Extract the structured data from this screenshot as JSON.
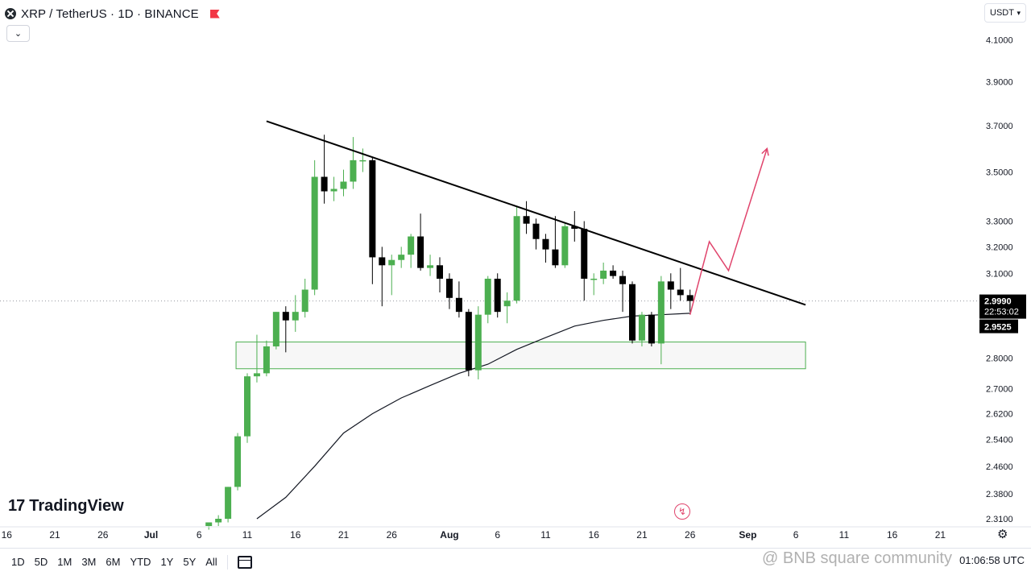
{
  "header": {
    "title": "XRP / TetherUS · 1D · BINANCE",
    "currency": "USDT"
  },
  "brand": "TradingView",
  "ranges": [
    "1D",
    "5D",
    "1M",
    "3M",
    "6M",
    "YTD",
    "1Y",
    "5Y",
    "All"
  ],
  "clock": "01:06:58 UTC",
  "watermark": "@ BNB square community",
  "icons": {
    "symbol": "xrp-logo-icon",
    "flag": "flag-icon",
    "collapse": "chevron-down-icon",
    "calendar": "calendar-icon",
    "alert": "lightning-icon",
    "settings": "gear-icon"
  },
  "colors": {
    "up": "#4caf50",
    "down": "#000000",
    "trendline": "#000000",
    "ma": "#131722",
    "projection": "#e0446c",
    "zone_border": "#4caf50",
    "price_label_bg": "#000000"
  },
  "chart_data": {
    "type": "candlestick",
    "symbol": "XRP / TetherUS",
    "interval": "1D",
    "exchange": "BINANCE",
    "x_ticks": [
      "16",
      "21",
      "26",
      "Jul",
      "6",
      "11",
      "16",
      "21",
      "26",
      "Aug",
      "6",
      "11",
      "16",
      "21",
      "26",
      "Sep",
      "6",
      "11",
      "16",
      "21"
    ],
    "y_ticks": [
      "4.1000",
      "3.9000",
      "3.7000",
      "3.5000",
      "3.3000",
      "3.2000",
      "3.1000",
      "2.8000",
      "2.7000",
      "2.6200",
      "2.5400",
      "2.4600",
      "2.3800",
      "2.3100"
    ],
    "y_tick_values": [
      4.1,
      3.9,
      3.7,
      3.5,
      3.3,
      3.2,
      3.1,
      2.8,
      2.7,
      2.62,
      2.54,
      2.46,
      2.38,
      2.31
    ],
    "y_scale": "log",
    "ylim": [
      2.28,
      4.2
    ],
    "price_labels": {
      "last_price": "2.9990",
      "countdown": "22:53:02",
      "ma_value": "2.9525"
    },
    "candles": [
      {
        "date": "Jul 7",
        "o": 2.29,
        "h": 2.3,
        "l": 2.28,
        "c": 2.3
      },
      {
        "date": "Jul 8",
        "o": 2.3,
        "h": 2.32,
        "l": 2.29,
        "c": 2.31
      },
      {
        "date": "Jul 9",
        "o": 2.31,
        "h": 2.4,
        "l": 2.3,
        "c": 2.4
      },
      {
        "date": "Jul 10",
        "o": 2.4,
        "h": 2.56,
        "l": 2.39,
        "c": 2.55
      },
      {
        "date": "Jul 11",
        "o": 2.55,
        "h": 2.75,
        "l": 2.53,
        "c": 2.74
      },
      {
        "date": "Jul 12",
        "o": 2.74,
        "h": 2.88,
        "l": 2.72,
        "c": 2.75
      },
      {
        "date": "Jul 13",
        "o": 2.75,
        "h": 2.86,
        "l": 2.74,
        "c": 2.84
      },
      {
        "date": "Jul 14",
        "o": 2.84,
        "h": 2.96,
        "l": 2.83,
        "c": 2.96
      },
      {
        "date": "Jul 15",
        "o": 2.96,
        "h": 2.98,
        "l": 2.82,
        "c": 2.93
      },
      {
        "date": "Jul 16",
        "o": 2.93,
        "h": 3.02,
        "l": 2.89,
        "c": 2.96
      },
      {
        "date": "Jul 17",
        "o": 2.96,
        "h": 3.08,
        "l": 2.94,
        "c": 3.04
      },
      {
        "date": "Jul 18",
        "o": 3.04,
        "h": 3.55,
        "l": 3.02,
        "c": 3.48
      },
      {
        "date": "Jul 19",
        "o": 3.48,
        "h": 3.66,
        "l": 3.37,
        "c": 3.42
      },
      {
        "date": "Jul 20",
        "o": 3.42,
        "h": 3.48,
        "l": 3.38,
        "c": 3.43
      },
      {
        "date": "Jul 21",
        "o": 3.43,
        "h": 3.51,
        "l": 3.4,
        "c": 3.46
      },
      {
        "date": "Jul 22",
        "o": 3.46,
        "h": 3.65,
        "l": 3.43,
        "c": 3.55
      },
      {
        "date": "Jul 23",
        "o": 3.55,
        "h": 3.6,
        "l": 3.5,
        "c": 3.55
      },
      {
        "date": "Jul 24",
        "o": 3.55,
        "h": 3.56,
        "l": 3.06,
        "c": 3.16
      },
      {
        "date": "Jul 25",
        "o": 3.16,
        "h": 3.2,
        "l": 2.98,
        "c": 3.13
      },
      {
        "date": "Jul 26",
        "o": 3.13,
        "h": 3.17,
        "l": 3.02,
        "c": 3.15
      },
      {
        "date": "Jul 27",
        "o": 3.15,
        "h": 3.2,
        "l": 3.12,
        "c": 3.17
      },
      {
        "date": "Jul 28",
        "o": 3.17,
        "h": 3.25,
        "l": 3.12,
        "c": 3.24
      },
      {
        "date": "Jul 29",
        "o": 3.24,
        "h": 3.33,
        "l": 3.11,
        "c": 3.12
      },
      {
        "date": "Jul 30",
        "o": 3.12,
        "h": 3.17,
        "l": 3.09,
        "c": 3.13
      },
      {
        "date": "Jul 31",
        "o": 3.13,
        "h": 3.16,
        "l": 3.03,
        "c": 3.08
      },
      {
        "date": "Aug 1",
        "o": 3.08,
        "h": 3.1,
        "l": 2.97,
        "c": 3.01
      },
      {
        "date": "Aug 2",
        "o": 3.01,
        "h": 3.07,
        "l": 2.94,
        "c": 2.96
      },
      {
        "date": "Aug 3",
        "o": 2.96,
        "h": 2.97,
        "l": 2.74,
        "c": 2.76
      },
      {
        "date": "Aug 4",
        "o": 2.76,
        "h": 2.98,
        "l": 2.73,
        "c": 2.95
      },
      {
        "date": "Aug 5",
        "o": 2.95,
        "h": 3.09,
        "l": 2.92,
        "c": 3.08
      },
      {
        "date": "Aug 6",
        "o": 3.08,
        "h": 3.1,
        "l": 2.94,
        "c": 2.96
      },
      {
        "date": "Aug 7",
        "o": 2.98,
        "h": 3.03,
        "l": 2.92,
        "c": 3.0
      },
      {
        "date": "Aug 8",
        "o": 3.0,
        "h": 3.36,
        "l": 2.99,
        "c": 3.32
      },
      {
        "date": "Aug 9",
        "o": 3.32,
        "h": 3.38,
        "l": 3.25,
        "c": 3.29
      },
      {
        "date": "Aug 10",
        "o": 3.29,
        "h": 3.31,
        "l": 3.19,
        "c": 3.23
      },
      {
        "date": "Aug 11",
        "o": 3.23,
        "h": 3.25,
        "l": 3.14,
        "c": 3.19
      },
      {
        "date": "Aug 12",
        "o": 3.19,
        "h": 3.32,
        "l": 3.12,
        "c": 3.13
      },
      {
        "date": "Aug 13",
        "o": 3.13,
        "h": 3.29,
        "l": 3.12,
        "c": 3.28
      },
      {
        "date": "Aug 14",
        "o": 3.28,
        "h": 3.34,
        "l": 3.22,
        "c": 3.27
      },
      {
        "date": "Aug 15",
        "o": 3.27,
        "h": 3.3,
        "l": 3.0,
        "c": 3.08
      },
      {
        "date": "Aug 16",
        "o": 3.08,
        "h": 3.1,
        "l": 3.02,
        "c": 3.08
      },
      {
        "date": "Aug 17",
        "o": 3.08,
        "h": 3.14,
        "l": 3.06,
        "c": 3.11
      },
      {
        "date": "Aug 18",
        "o": 3.11,
        "h": 3.13,
        "l": 3.08,
        "c": 3.09
      },
      {
        "date": "Aug 19",
        "o": 3.09,
        "h": 3.11,
        "l": 2.96,
        "c": 3.06
      },
      {
        "date": "Aug 20",
        "o": 3.06,
        "h": 3.07,
        "l": 2.85,
        "c": 2.86
      },
      {
        "date": "Aug 21",
        "o": 2.86,
        "h": 2.96,
        "l": 2.84,
        "c": 2.95
      },
      {
        "date": "Aug 22",
        "o": 2.95,
        "h": 2.96,
        "l": 2.84,
        "c": 2.85
      },
      {
        "date": "Aug 23",
        "o": 2.85,
        "h": 3.09,
        "l": 2.78,
        "c": 3.07
      },
      {
        "date": "Aug 24",
        "o": 3.07,
        "h": 3.1,
        "l": 2.97,
        "c": 3.04
      },
      {
        "date": "Aug 25",
        "o": 3.04,
        "h": 3.12,
        "l": 3.0,
        "c": 3.02
      },
      {
        "date": "Aug 26",
        "o": 3.02,
        "h": 3.04,
        "l": 2.96,
        "c": 2.999
      }
    ],
    "moving_average": [
      {
        "date": "Jul 12",
        "v": 2.31
      },
      {
        "date": "Jul 15",
        "v": 2.37
      },
      {
        "date": "Jul 18",
        "v": 2.46
      },
      {
        "date": "Jul 21",
        "v": 2.56
      },
      {
        "date": "Jul 24",
        "v": 2.62
      },
      {
        "date": "Jul 27",
        "v": 2.67
      },
      {
        "date": "Jul 30",
        "v": 2.71
      },
      {
        "date": "Aug 2",
        "v": 2.75
      },
      {
        "date": "Aug 5",
        "v": 2.78
      },
      {
        "date": "Aug 8",
        "v": 2.83
      },
      {
        "date": "Aug 11",
        "v": 2.87
      },
      {
        "date": "Aug 14",
        "v": 2.91
      },
      {
        "date": "Aug 17",
        "v": 2.93
      },
      {
        "date": "Aug 20",
        "v": 2.945
      },
      {
        "date": "Aug 23",
        "v": 2.95
      },
      {
        "date": "Aug 26",
        "v": 2.955
      }
    ],
    "trendline": {
      "start": {
        "date": "Jul 13",
        "price": 3.72
      },
      "end": {
        "date": "Sep 7",
        "price": 2.985
      }
    },
    "support_zone": {
      "from_date": "Jul 10",
      "to_date": "Sep 7",
      "top": 2.855,
      "bottom": 2.765
    },
    "projection": [
      {
        "date": "Aug 26",
        "price": 2.95
      },
      {
        "date": "Aug 28",
        "price": 3.22
      },
      {
        "date": "Aug 30",
        "price": 3.11
      },
      {
        "date": "Sep 3",
        "price": 3.6
      }
    ],
    "grid": false,
    "legend": "none"
  }
}
